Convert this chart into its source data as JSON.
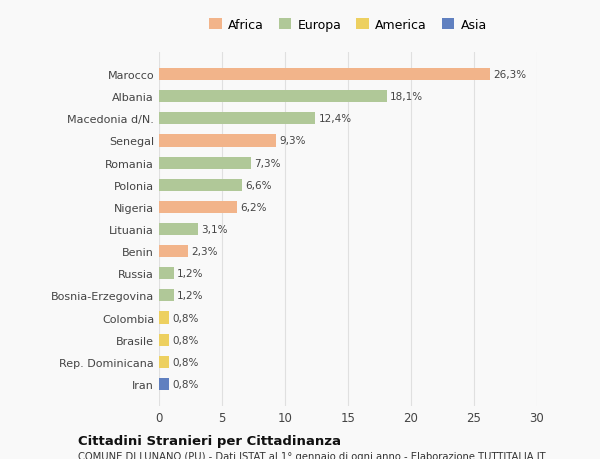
{
  "categories": [
    "Marocco",
    "Albania",
    "Macedonia d/N.",
    "Senegal",
    "Romania",
    "Polonia",
    "Nigeria",
    "Lituania",
    "Benin",
    "Russia",
    "Bosnia-Erzegovina",
    "Colombia",
    "Brasile",
    "Rep. Dominicana",
    "Iran"
  ],
  "values": [
    26.3,
    18.1,
    12.4,
    9.3,
    7.3,
    6.6,
    6.2,
    3.1,
    2.3,
    1.2,
    1.2,
    0.8,
    0.8,
    0.8,
    0.8
  ],
  "labels": [
    "26,3%",
    "18,1%",
    "12,4%",
    "9,3%",
    "7,3%",
    "6,6%",
    "6,2%",
    "3,1%",
    "2,3%",
    "1,2%",
    "1,2%",
    "0,8%",
    "0,8%",
    "0,8%",
    "0,8%"
  ],
  "continents": [
    "Africa",
    "Europa",
    "Europa",
    "Africa",
    "Europa",
    "Europa",
    "Africa",
    "Europa",
    "Africa",
    "Europa",
    "Europa",
    "America",
    "America",
    "America",
    "Asia"
  ],
  "colors": {
    "Africa": "#F2B48A",
    "Europa": "#B0C898",
    "America": "#EDD060",
    "Asia": "#6080C0"
  },
  "legend_order": [
    "Africa",
    "Europa",
    "America",
    "Asia"
  ],
  "title": "Cittadini Stranieri per Cittadinanza",
  "subtitle": "COMUNE DI LUNANO (PU) - Dati ISTAT al 1° gennaio di ogni anno - Elaborazione TUTTITALIA.IT",
  "xlim": [
    0,
    30
  ],
  "xticks": [
    0,
    5,
    10,
    15,
    20,
    25,
    30
  ],
  "background_color": "#f9f9f9",
  "grid_color": "#e0e0e0"
}
